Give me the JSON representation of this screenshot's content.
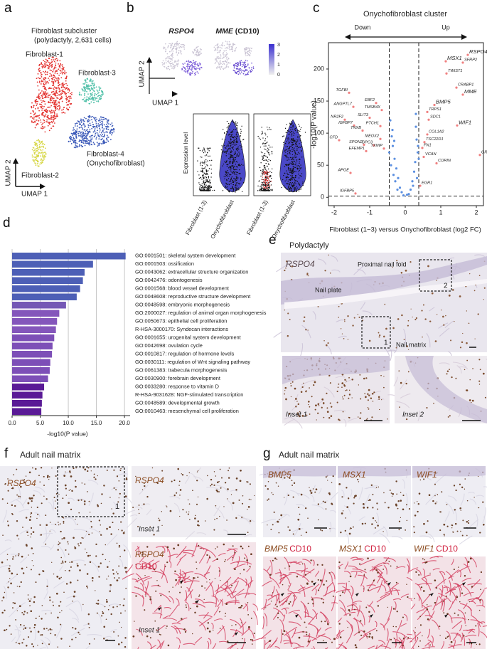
{
  "panels": {
    "panel_a": {
      "label": "a",
      "title": "Fibroblast subcluster",
      "subtitle": "(polydactyly, 2,631 cells)",
      "clusters": [
        "Fibroblast-1",
        "Fibroblast-2",
        "Fibroblast-3",
        "Fibroblast-4",
        "(Onychofibroblast)"
      ],
      "axis_x": "UMAP 1",
      "axis_y": "UMAP 2"
    },
    "panel_b": {
      "label": "b",
      "genes": [
        "RSPO4",
        "MME"
      ],
      "gene_suffix": "(CD10)",
      "colorbar_ticks": [
        0,
        1,
        2,
        3
      ],
      "axis_x": "UMAP 1",
      "axis_y": "UMAP 2",
      "violin_ylabel": "Expression level",
      "groups": [
        "Fibroblast (1-3)",
        "Onychofibroblast"
      ]
    },
    "panel_c": {
      "label": "c"
    },
    "panel_d": {
      "label": "d"
    },
    "panel_e": {
      "label": "e",
      "title": "Polydactyly",
      "stain": "RSPO4",
      "regions": [
        "Proximal nail fold",
        "Nail plate",
        "Nail matrix"
      ],
      "boxes": [
        "1",
        "2"
      ],
      "insets": [
        "Inset 1",
        "Inset 2"
      ]
    },
    "panel_f": {
      "label": "f",
      "title": "Adult nail matrix",
      "stain": "RSPO4",
      "counterstain": "CD10",
      "box": "1",
      "inset": "Inset 1"
    },
    "panel_g": {
      "label": "g",
      "title": "Adult nail matrix",
      "stains": [
        "BMP5",
        "MSX1",
        "WIF1"
      ],
      "counterstain": "CD10"
    }
  },
  "chart_data": [
    {
      "type": "barh",
      "categories": [
        "GO:0001501: skeletal system development",
        "GO:0001503: ossification",
        "GO:0043062: extracellular structure organization",
        "GO:0042476: odontogenesis",
        "GO:0001568: blood vessel development",
        "GO:0048608: reproductive structure development",
        "GO:0048598: embryonic morphogenesis",
        "GO:2000027: regulation of animal organ morphogenesis",
        "GO:0050673: epithelial cell proliferation",
        "R-HSA-3000170: Syndecan interactions",
        "GO:0001655: urogenital system development",
        "GO:0042698: ovulation cycle",
        "GO:0010817: regulation of hormone levels",
        "GO:0030111: regulation of Wnt signaling pathway",
        "GO:0061383: trabecula morphogenesis",
        "GO:0030900: forebrain development",
        "GO:0033280: response to vitamin D",
        "R-HSA-9031628: NGF-stimulated transcription",
        "GO:0048589: developmental growth",
        "GO:0010463: mesenchymal cell proliferation"
      ],
      "values": [
        20.2,
        14.4,
        12.9,
        12.6,
        12.1,
        11.5,
        9.6,
        8.4,
        8.0,
        7.8,
        7.5,
        7.2,
        7.1,
        6.8,
        6.7,
        6.4,
        5.7,
        5.4,
        5.3,
        5.2
      ],
      "colors": [
        "#4d5fb6",
        "#4d5fb6",
        "#4d5fb6",
        "#4d5fb6",
        "#4d5fb6",
        "#4d5fb6",
        "#7457b5",
        "#8456bb",
        "#8456bb",
        "#8456bb",
        "#7d4fb7",
        "#7d4fb7",
        "#7d4fb7",
        "#7d4fb7",
        "#7d4fb7",
        "#7d4fb7",
        "#5a1a96",
        "#5a1a96",
        "#5a1a96",
        "#5a1a96"
      ],
      "xlabel": "-log10(P value)",
      "xlim": [
        0,
        21
      ],
      "xticks": [
        {
          "value": 0,
          "label": "0.0"
        },
        {
          "value": 5,
          "label": "5.0"
        },
        {
          "value": 10,
          "label": "10.0"
        },
        {
          "value": 15,
          "label": "15.0"
        },
        {
          "value": 20,
          "label": "20.0"
        }
      ],
      "grid": true
    },
    {
      "type": "scatter",
      "title": "Onychofibroblast cluster",
      "annotations": [
        "Down",
        "Up"
      ],
      "xlabel": "Fibroblast (1−3) versus Onychofibroblast (log2 FC)",
      "ylabel": "-log10(P value)",
      "xlim": [
        -2.16,
        2.2
      ],
      "ylim": [
        -13,
        241
      ],
      "xticks": [
        -2,
        -1,
        0,
        1,
        2
      ],
      "yticks": [
        0,
        50,
        100,
        150,
        200
      ],
      "vlines": [
        -0.45,
        0.38
      ],
      "hline": 2,
      "series": [
        {
          "color": "#f08080",
          "x": [
            1.76,
            1.62,
            1.14,
            1.16,
            1.44,
            1.62,
            0.82,
            0.62,
            0.66,
            1.46,
            2.1,
            0.62,
            0.54,
            0.48,
            0.52,
            0.88,
            0.42,
            -1.58,
            -1.46,
            -0.82,
            -0.66,
            -1.7,
            -1.0,
            -1.44,
            -0.7,
            -1.2,
            -0.7,
            -1.86,
            -1.16,
            -0.88,
            -0.6,
            -1.1,
            -1.54,
            -1.4
          ],
          "y": [
            222,
            210,
            212,
            193,
            171,
            160,
            144,
            133,
            121,
            112,
            66,
            98,
            86,
            77,
            63,
            53,
            18,
            163,
            141,
            147,
            136,
            121,
            124,
            112,
            111,
            104,
            91,
            89,
            82,
            81,
            76,
            72,
            38,
            6
          ],
          "labels": [
            "RSPO4",
            "SFRP2",
            "MSX1",
            "TWIST1",
            "CRABP1",
            "MME",
            "BMP5",
            "TRPS1",
            "SDC1",
            "WIF1",
            "GRP",
            "COL1A2",
            "TSC22D1",
            "FN1",
            "VCAN",
            "CORIN",
            "EGR1",
            "TGFBI",
            "ANGPTL7",
            "EBF2",
            "TMSB4X",
            "NR2F2",
            "SLIT3",
            "IGFBP7",
            "PTCH1",
            "TNXB",
            "MEOX2",
            "CFD",
            "SPON2",
            "GPC3",
            "TXNIP",
            "EFEMP1",
            "APOE",
            "IGFBP5"
          ],
          "label_colors": [
            "#e8542a",
            "#222222",
            "#e8542a",
            "#222222",
            "#222222",
            "#e8542a",
            "#e8542a",
            "#222222",
            "#222222",
            "#e8542a",
            "#222222",
            "#222222",
            "#222222",
            "#222222",
            "#222222",
            "#222222",
            "#222222",
            "#222222",
            "#222222",
            "#222222",
            "#222222",
            "#222222",
            "#222222",
            "#222222",
            "#222222",
            "#222222",
            "#222222",
            "#222222",
            "#222222",
            "#222222",
            "#222222",
            "#222222",
            "#222222",
            "#222222"
          ]
        },
        {
          "color": "#5b8fe0",
          "x": [
            -0.42,
            -0.38,
            -0.35,
            -0.3,
            -0.25,
            -0.2,
            -0.15,
            -0.1,
            -0.45,
            -0.4,
            -0.33,
            -0.28,
            -0.22,
            -0.36,
            -0.31,
            0.3,
            0.32,
            0.35,
            0.28,
            0.25,
            0.2,
            0.15,
            0.38,
            0.36,
            0.33,
            0.1,
            -0.05,
            0.05,
            0.22,
            0.3
          ],
          "y": [
            120,
            95,
            80,
            60,
            45,
            30,
            15,
            8,
            70,
            50,
            35,
            25,
            12,
            105,
            88,
            110,
            90,
            70,
            55,
            40,
            25,
            12,
            60,
            80,
            30,
            5,
            3,
            4,
            18,
            130
          ]
        }
      ]
    }
  ]
}
